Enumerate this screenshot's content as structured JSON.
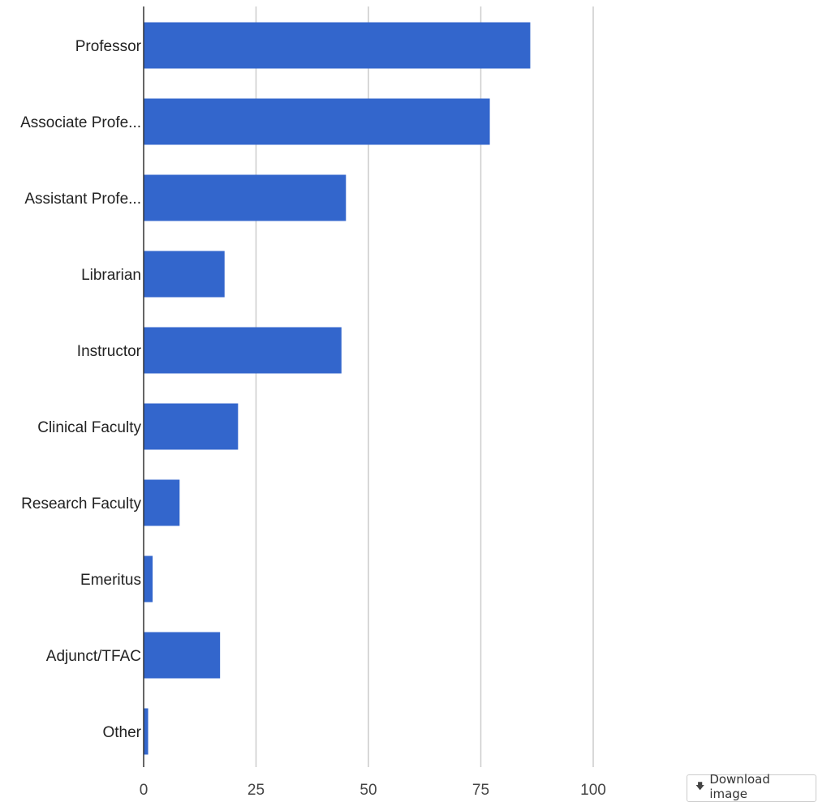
{
  "chart_data": {
    "type": "bar",
    "orientation": "horizontal",
    "categories": [
      "Professor",
      "Associate Profe...",
      "Assistant Profe...",
      "Librarian",
      "Instructor",
      "Clinical Faculty",
      "Research Faculty",
      "Emeritus",
      "Adjunct/TFAC",
      "Other"
    ],
    "values": [
      86,
      77,
      45,
      18,
      44,
      21,
      8,
      2,
      17,
      1
    ],
    "xlim": [
      0,
      100
    ],
    "xticks": [
      "0",
      "25",
      "50",
      "75",
      "100"
    ],
    "grid": true,
    "bar_color": "#3366cc",
    "title": "",
    "xlabel": "",
    "ylabel": ""
  },
  "download": {
    "label": "Download image",
    "icon": "download-arrow-icon"
  }
}
